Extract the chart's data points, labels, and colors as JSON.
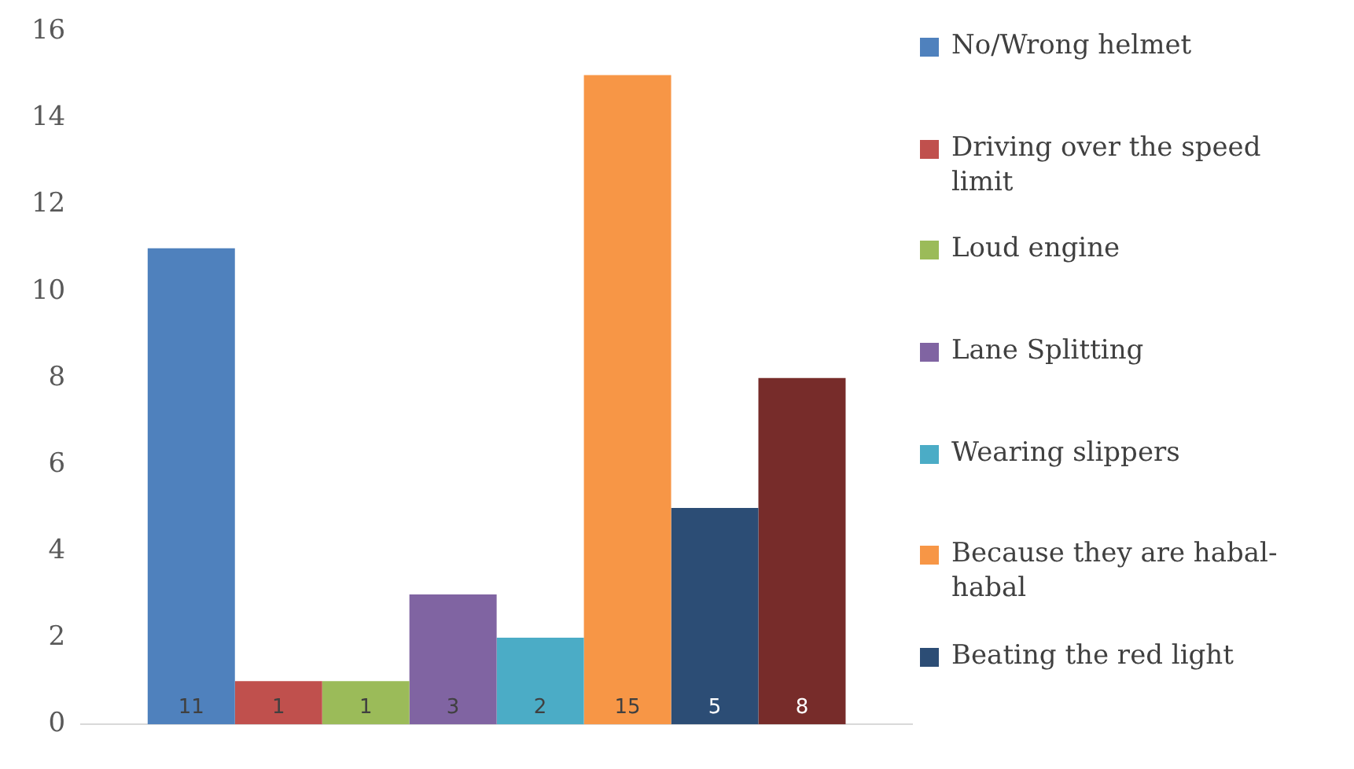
{
  "chart_data": {
    "type": "bar",
    "categories": [
      null
    ],
    "series": [
      {
        "name": "No/Wrong helmet",
        "color": "#4f81bd",
        "values": [
          11
        ]
      },
      {
        "name": "Driving over the speed limit",
        "color": "#c0504d",
        "values": [
          1
        ]
      },
      {
        "name": "Loud engine",
        "color": "#9bbb59",
        "values": [
          1
        ]
      },
      {
        "name": "Lane Splitting",
        "color": "#8064a2",
        "values": [
          3
        ]
      },
      {
        "name": "Wearing slippers",
        "color": "#4bacc6",
        "values": [
          2
        ]
      },
      {
        "name": "Because they are habal-habal",
        "color": "#f79646",
        "values": [
          15
        ]
      },
      {
        "name": "Beating the red light",
        "color": "#2c4d75",
        "values": [
          5
        ]
      },
      {
        "color": "#772c2a",
        "values": [
          8
        ]
      }
    ],
    "ylim": [
      0,
      16
    ],
    "yticks": [
      0,
      2,
      4,
      6,
      8,
      10,
      12,
      14,
      16
    ],
    "grid": false,
    "legend": "right",
    "data_labels": true
  }
}
